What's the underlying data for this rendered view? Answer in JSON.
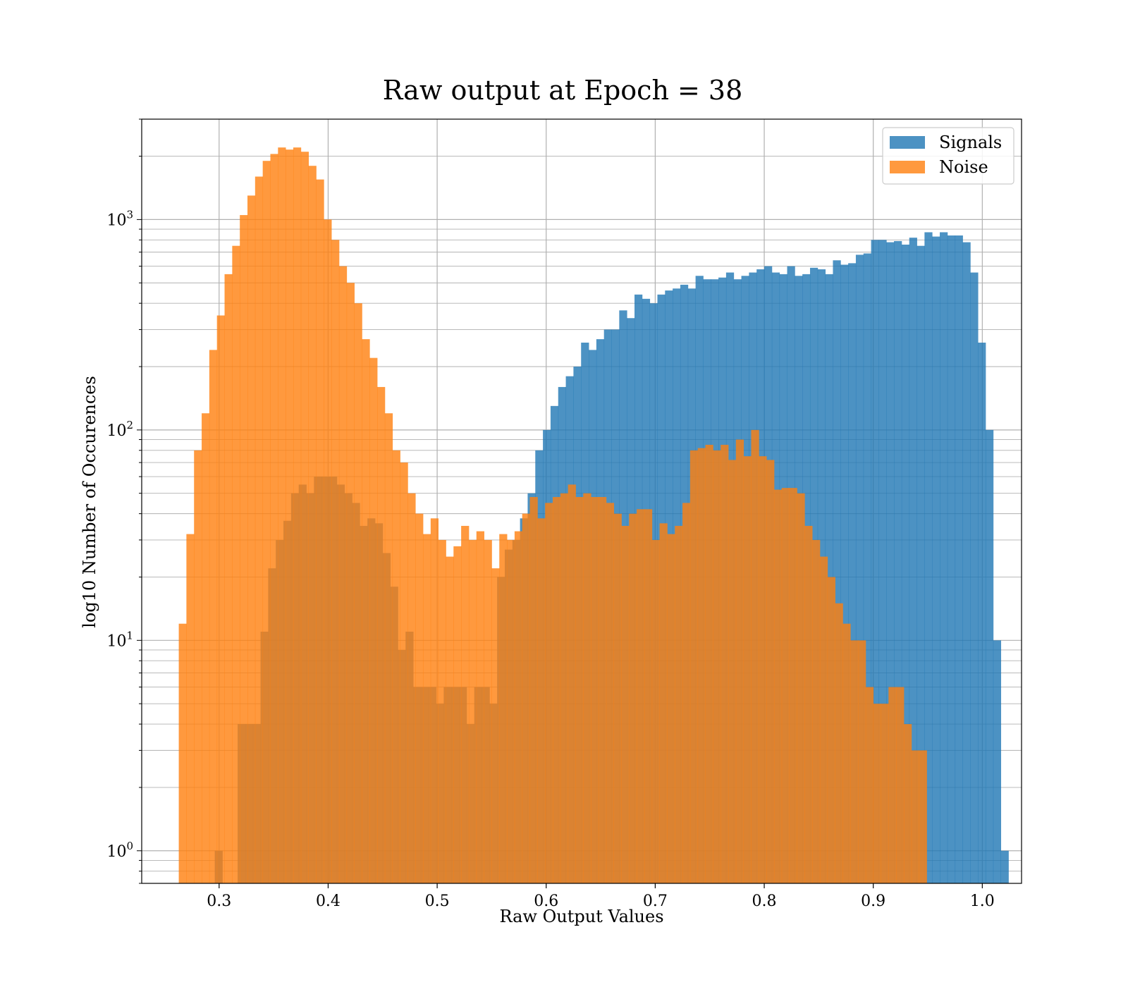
{
  "chart_data": {
    "type": "histogram",
    "title": "Raw output at Epoch = 38",
    "xlabel": "Raw Output Values",
    "ylabel": "log10 Number of Occurences",
    "xlim": [
      0.229,
      1.036
    ],
    "ylim": [
      0.7,
      3000
    ],
    "yscale": "log",
    "grid": true,
    "legend_position": "top-right",
    "x_ticks": [
      {
        "value": 0.3,
        "label": "0.3"
      },
      {
        "value": 0.4,
        "label": "0.4"
      },
      {
        "value": 0.5,
        "label": "0.5"
      },
      {
        "value": 0.6,
        "label": "0.6"
      },
      {
        "value": 0.7,
        "label": "0.7"
      },
      {
        "value": 0.8,
        "label": "0.8"
      },
      {
        "value": 0.9,
        "label": "0.9"
      },
      {
        "value": 1.0,
        "label": "1.0"
      }
    ],
    "y_ticks": [
      {
        "value": 1,
        "base": "10",
        "exp": "0"
      },
      {
        "value": 10,
        "base": "10",
        "exp": "1"
      },
      {
        "value": 100,
        "base": "10",
        "exp": "2"
      },
      {
        "value": 1000,
        "base": "10",
        "exp": "3"
      }
    ],
    "series": [
      {
        "name": "Signals",
        "color": "#1f77b4",
        "opacity": 0.8,
        "x_start": 0.296,
        "bin_width": 0.007,
        "counts": [
          1,
          0,
          0,
          4,
          4,
          4,
          11,
          22,
          30,
          37,
          50,
          55,
          50,
          60,
          60,
          60,
          55,
          50,
          45,
          35,
          38,
          36,
          26,
          18,
          9,
          11,
          6,
          6,
          6,
          5,
          6,
          6,
          6,
          4,
          6,
          6,
          5,
          20,
          27,
          30,
          38,
          50,
          80,
          100,
          130,
          160,
          180,
          200,
          260,
          240,
          270,
          300,
          300,
          370,
          340,
          440,
          420,
          400,
          440,
          460,
          470,
          490,
          470,
          540,
          520,
          520,
          530,
          560,
          520,
          540,
          560,
          580,
          600,
          560,
          550,
          600,
          540,
          550,
          590,
          580,
          550,
          640,
          610,
          620,
          680,
          690,
          800,
          800,
          780,
          790,
          760,
          820,
          750,
          870,
          830,
          870,
          840,
          840,
          780,
          560,
          260,
          100,
          10,
          1
        ]
      },
      {
        "name": "Noise",
        "color": "#ff7f0e",
        "opacity": 0.8,
        "x_start": 0.263,
        "bin_width": 0.007,
        "counts": [
          12,
          32,
          80,
          120,
          240,
          350,
          550,
          750,
          1050,
          1300,
          1600,
          1900,
          2050,
          2200,
          2150,
          2200,
          2100,
          1800,
          1550,
          1000,
          800,
          600,
          500,
          400,
          270,
          220,
          160,
          120,
          80,
          70,
          50,
          40,
          32,
          38,
          30,
          25,
          28,
          35,
          30,
          33,
          30,
          22,
          32,
          30,
          33,
          40,
          48,
          38,
          45,
          48,
          50,
          55,
          48,
          50,
          48,
          48,
          45,
          40,
          35,
          40,
          42,
          42,
          30,
          36,
          32,
          35,
          45,
          80,
          82,
          85,
          80,
          85,
          72,
          90,
          75,
          100,
          75,
          72,
          52,
          53,
          53,
          50,
          35,
          30,
          25,
          20,
          15,
          12,
          10,
          10,
          6,
          5,
          5,
          6,
          6,
          4,
          3,
          3
        ]
      }
    ]
  }
}
